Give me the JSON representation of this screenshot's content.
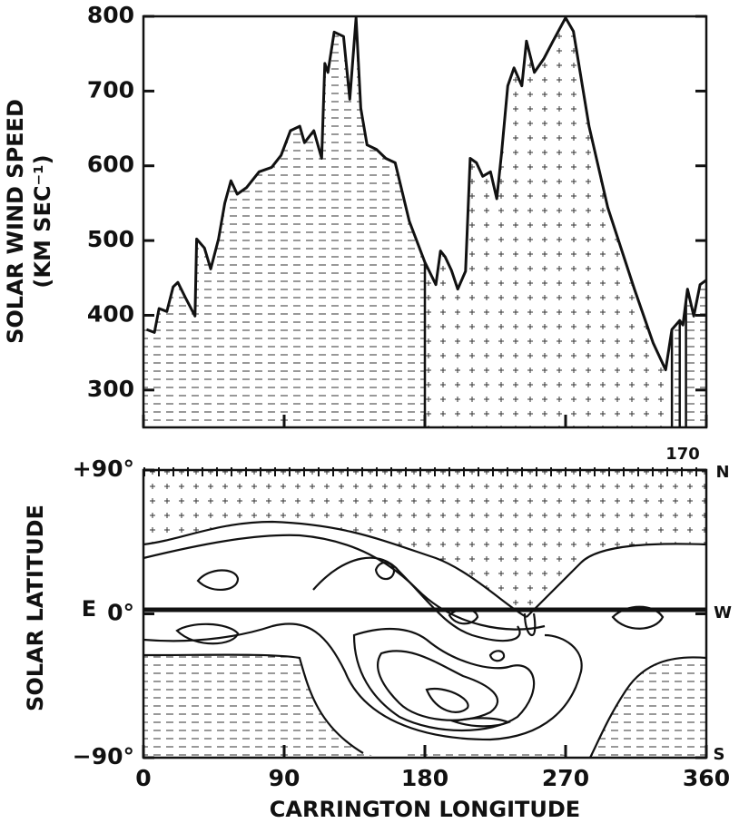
{
  "chart_data": [
    {
      "type": "area",
      "ylabel": "SOLAR WIND SPEED",
      "ylabel_units": "(KM SEC⁻¹)",
      "x": [
        2,
        7,
        10,
        15,
        19,
        22,
        27,
        33,
        34,
        39,
        43,
        48,
        52,
        56,
        60,
        66,
        74,
        82,
        88,
        94,
        100,
        103,
        109,
        114,
        116,
        118,
        122,
        128,
        132,
        136,
        139,
        143,
        149,
        155,
        161,
        170,
        180,
        187,
        190,
        193,
        197,
        201,
        206,
        209,
        213,
        217,
        222,
        226,
        229,
        233,
        237,
        242,
        245,
        250,
        256,
        262,
        270,
        275,
        285,
        297,
        314,
        326,
        334,
        338,
        343,
        345,
        348,
        352,
        356,
        360
      ],
      "values": [
        381,
        377,
        409,
        405,
        438,
        444,
        423,
        399,
        502,
        490,
        462,
        502,
        550,
        580,
        562,
        571,
        592,
        598,
        614,
        647,
        653,
        631,
        647,
        610,
        737,
        725,
        779,
        773,
        689,
        798,
        677,
        628,
        622,
        610,
        604,
        526,
        471,
        441,
        486,
        478,
        460,
        435,
        459,
        610,
        604,
        586,
        592,
        556,
        616,
        707,
        731,
        707,
        767,
        725,
        743,
        767,
        798,
        780,
        653,
        544,
        435,
        363,
        327,
        381,
        393,
        387,
        435,
        399,
        441,
        447
      ],
      "color": "#111111",
      "sectors": [
        {
          "xlim": [
            0,
            180
          ],
          "pattern": "dash"
        },
        {
          "xlim": [
            180,
            338
          ],
          "pattern": "plus"
        },
        {
          "xlim": [
            338,
            343
          ],
          "pattern": "dash"
        },
        {
          "xlim": [
            343,
            347
          ],
          "pattern": "plus"
        },
        {
          "xlim": [
            347,
            360
          ],
          "pattern": "dash"
        }
      ],
      "xlim": [
        0,
        360
      ],
      "xticks": [
        0,
        90,
        180,
        270,
        360
      ],
      "ylim": [
        250,
        800
      ],
      "yticks": [
        300,
        400,
        500,
        600,
        700,
        800
      ]
    },
    {
      "type": "contour",
      "ylabel": "SOLAR LATITUDE",
      "xlabel": "CARRINGTON LONGITUDE",
      "xlim": [
        0,
        360
      ],
      "xticks": [
        0,
        90,
        180,
        270,
        360
      ],
      "ylim": [
        -90,
        90
      ],
      "yticks": [
        {
          "value": 90,
          "label": "+90°"
        },
        {
          "value": 0,
          "label": "0°"
        },
        {
          "value": -90,
          "label": "−90°"
        }
      ],
      "annotations": {
        "east": "E",
        "west": "W",
        "north": "N",
        "south": "S",
        "rotation": "170"
      }
    }
  ]
}
